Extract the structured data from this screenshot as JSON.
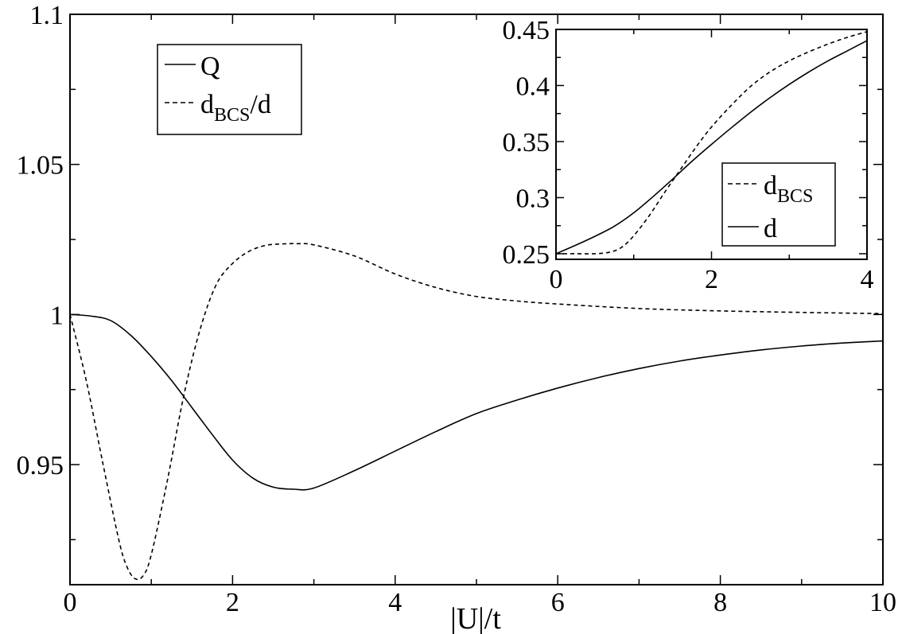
{
  "chart_data": [
    {
      "type": "line",
      "title": "",
      "xlabel": "|U|/t",
      "ylabel": "",
      "xlim": [
        0,
        10
      ],
      "ylim": [
        0.91,
        1.1
      ],
      "grid": false,
      "xticks": [
        "0",
        "2",
        "4",
        "6",
        "8",
        "10"
      ],
      "yticks": [
        "0.95",
        "1",
        "1.05",
        "1.1"
      ],
      "legend": {
        "position": "top-left"
      },
      "series": [
        {
          "name": "Q",
          "style": "solid",
          "x": [
            0,
            0.25,
            0.5,
            0.75,
            1.0,
            1.25,
            1.5,
            1.75,
            2.0,
            2.25,
            2.5,
            2.75,
            3.0,
            3.5,
            4.0,
            4.5,
            5.0,
            5.5,
            6.0,
            6.5,
            7.0,
            7.5,
            8.0,
            8.5,
            9.0,
            9.5,
            10.0
          ],
          "y": [
            1.0,
            0.9995,
            0.998,
            0.993,
            0.986,
            0.978,
            0.969,
            0.96,
            0.9515,
            0.9455,
            0.9425,
            0.9418,
            0.9422,
            0.948,
            0.9545,
            0.961,
            0.967,
            0.9715,
            0.9755,
            0.979,
            0.982,
            0.9845,
            0.9865,
            0.9882,
            0.9895,
            0.9905,
            0.9912
          ]
        },
        {
          "name": "d_BCS/d",
          "style": "dashed",
          "x": [
            0,
            0.2,
            0.4,
            0.6,
            0.7,
            0.8,
            0.9,
            1.0,
            1.2,
            1.4,
            1.6,
            1.8,
            2.0,
            2.2,
            2.4,
            2.6,
            2.8,
            3.0,
            3.5,
            4.0,
            4.5,
            5.0,
            5.5,
            6.0,
            7.0,
            8.0,
            9.0,
            10.0
          ],
          "y": [
            1.0,
            0.978,
            0.951,
            0.925,
            0.916,
            0.912,
            0.913,
            0.92,
            0.945,
            0.973,
            0.995,
            1.01,
            1.017,
            1.021,
            1.023,
            1.0235,
            1.0236,
            1.0232,
            1.0195,
            1.0135,
            1.009,
            1.006,
            1.0045,
            1.0035,
            1.002,
            1.0012,
            1.0007,
            1.0003
          ]
        }
      ]
    },
    {
      "type": "line",
      "title": "",
      "xlabel": "",
      "ylabel": "",
      "xlim": [
        0,
        4
      ],
      "ylim": [
        0.245,
        0.45
      ],
      "grid": false,
      "xticks": [
        "0",
        "2",
        "4"
      ],
      "yticks": [
        "0.25",
        "0.3",
        "0.35",
        "0.4",
        "0.45"
      ],
      "legend": {
        "position": "bottom-right"
      },
      "series": [
        {
          "name": "d_BCS",
          "style": "dashed",
          "x": [
            0,
            0.25,
            0.5,
            0.7,
            0.85,
            1.0,
            1.2,
            1.4,
            1.6,
            1.8,
            2.0,
            2.25,
            2.5,
            2.75,
            3.0,
            3.25,
            3.5,
            3.75,
            4.0
          ],
          "y": [
            0.25,
            0.25,
            0.25,
            0.2515,
            0.256,
            0.266,
            0.284,
            0.305,
            0.325,
            0.345,
            0.363,
            0.382,
            0.399,
            0.412,
            0.422,
            0.43,
            0.437,
            0.443,
            0.448
          ]
        },
        {
          "name": "d",
          "style": "solid",
          "x": [
            0,
            0.25,
            0.5,
            0.75,
            1.0,
            1.25,
            1.5,
            1.75,
            2.0,
            2.25,
            2.5,
            2.75,
            3.0,
            3.25,
            3.5,
            3.75,
            4.0
          ],
          "y": [
            0.25,
            0.2575,
            0.2655,
            0.2745,
            0.2865,
            0.301,
            0.3165,
            0.3325,
            0.3475,
            0.362,
            0.376,
            0.389,
            0.401,
            0.412,
            0.422,
            0.431,
            0.44
          ]
        }
      ]
    }
  ],
  "legend_main": {
    "q_label": "Q",
    "ratio_main": "d",
    "ratio_sub": "BCS",
    "ratio_tail": "/d"
  },
  "legend_inset": {
    "dbcs_main": "d",
    "dbcs_sub": "BCS",
    "d_label": "d"
  }
}
